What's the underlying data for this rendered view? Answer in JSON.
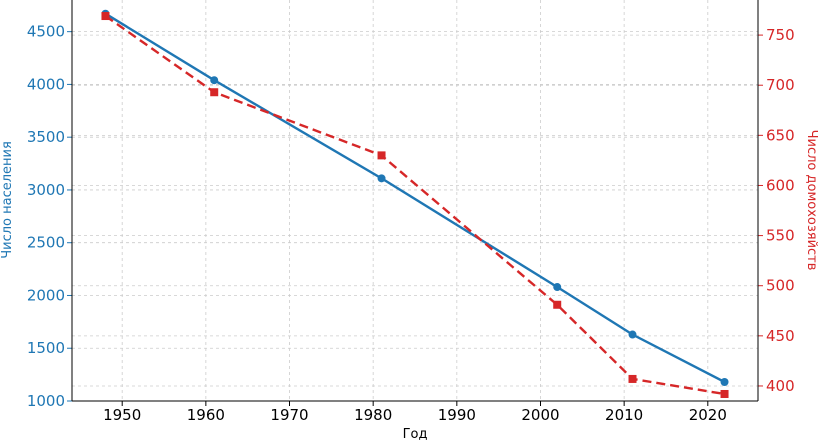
{
  "chart_data": {
    "type": "line",
    "xlabel": "Год",
    "ylabel_left": "Число населения",
    "ylabel_right": "Число домохозяйств",
    "xlim": [
      1944,
      2026
    ],
    "ylim_left": [
      1000,
      4800
    ],
    "ylim_right": [
      385,
      785
    ],
    "x_ticks": [
      1950,
      1960,
      1970,
      1980,
      1990,
      2000,
      2010,
      2020
    ],
    "y_left_ticks": [
      1000,
      1500,
      2000,
      2500,
      3000,
      3500,
      4000,
      4500
    ],
    "y_right_ticks": [
      400,
      450,
      500,
      550,
      600,
      650,
      700,
      750
    ],
    "grid": true,
    "series": [
      {
        "name": "Число населения",
        "axis": "left",
        "color": "#1f77b4",
        "style": "solid",
        "marker": "circle",
        "x": [
          1948,
          1961,
          1981,
          2002,
          2011,
          2022
        ],
        "y": [
          4670,
          4040,
          3110,
          2080,
          1630,
          1180
        ]
      },
      {
        "name": "Число домохозяйств",
        "axis": "right",
        "color": "#d62728",
        "style": "dashed",
        "marker": "square",
        "x": [
          1948,
          1961,
          1981,
          2002,
          2011,
          2022
        ],
        "y": [
          769,
          693,
          630,
          481,
          407,
          392
        ]
      }
    ]
  }
}
